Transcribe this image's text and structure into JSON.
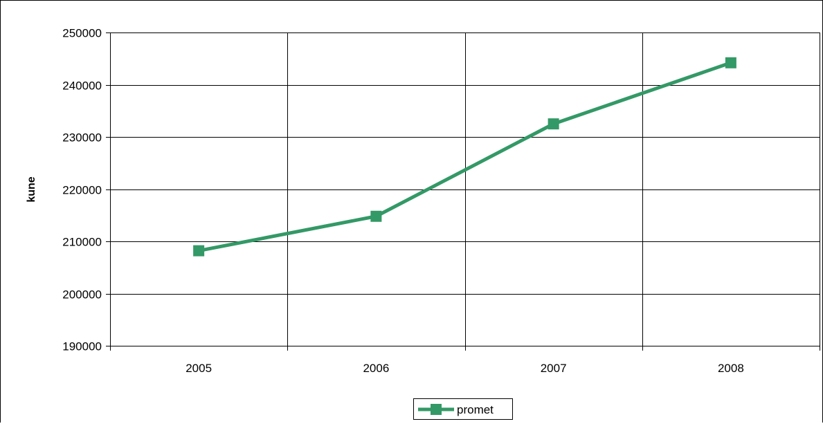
{
  "chart_data": {
    "type": "line",
    "title": "",
    "xlabel": "",
    "ylabel": "kune",
    "categories": [
      "2005",
      "2006",
      "2007",
      "2008"
    ],
    "ylim": [
      190000,
      250000
    ],
    "yticks": [
      190000,
      200000,
      210000,
      220000,
      230000,
      240000,
      250000
    ],
    "grid": true,
    "legend_position": "bottom",
    "series": [
      {
        "name": "promet",
        "values": [
          208200,
          214800,
          232500,
          244200
        ],
        "color": "#339966",
        "marker": "square"
      }
    ]
  }
}
